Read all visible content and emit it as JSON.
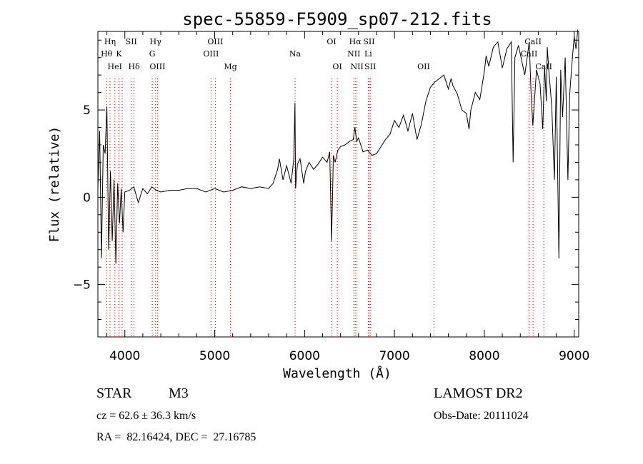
{
  "chart_data": {
    "type": "line",
    "title": "spec-55859-F5909_sp07-212.fits",
    "xlabel": "Wavelength (Å)",
    "ylabel": "Flux (relative)",
    "xlim": [
      3700,
      9050
    ],
    "ylim": [
      -8,
      9.5
    ],
    "xticks": [
      4000,
      5000,
      6000,
      7000,
      8000,
      9000
    ],
    "yticks": [
      -5,
      0,
      5
    ],
    "series": [
      {
        "color": "#000000",
        "x": [
          3700,
          3720,
          3740,
          3760,
          3780,
          3800,
          3820,
          3840,
          3860,
          3880,
          3900,
          3920,
          3940,
          3960,
          3980,
          4000,
          4050,
          4100,
          4150,
          4200,
          4250,
          4300,
          4350,
          4400,
          4500,
          4600,
          4700,
          4800,
          4900,
          5000,
          5100,
          5200,
          5300,
          5400,
          5500,
          5600,
          5650,
          5700,
          5720,
          5760,
          5800,
          5850,
          5880,
          5893,
          5900,
          5920,
          5950,
          5990,
          6010,
          6050,
          6100,
          6150,
          6200,
          6250,
          6280,
          6300,
          6320,
          6340,
          6370,
          6400,
          6450,
          6500,
          6540,
          6560,
          6580,
          6600,
          6650,
          6700,
          6750,
          6800,
          6850,
          6900,
          6950,
          7000,
          7050,
          7100,
          7150,
          7200,
          7250,
          7300,
          7350,
          7400,
          7450,
          7500,
          7550,
          7600,
          7630,
          7650,
          7700,
          7750,
          7800,
          7830,
          7850,
          7900,
          7950,
          8000,
          8020,
          8050,
          8100,
          8150,
          8200,
          8250,
          8300,
          8320,
          8340,
          8380,
          8450,
          8500,
          8520,
          8540,
          8580,
          8620,
          8650,
          8670,
          8690,
          8700,
          8720,
          8750,
          8780,
          8800,
          8830,
          8850,
          8870,
          8900,
          8930,
          8950,
          8980,
          9000,
          9020,
          9040
        ],
        "y": [
          0.5,
          3.8,
          -3.5,
          3.0,
          2.5,
          5.2,
          -3.0,
          1.5,
          -2.5,
          1.0,
          -3.8,
          0.8,
          -1.5,
          0.5,
          -2.0,
          0.3,
          0.4,
          0.6,
          -0.3,
          0.5,
          0.2,
          0.6,
          0.4,
          0.3,
          0.4,
          0.4,
          0.5,
          0.5,
          0.3,
          0.5,
          0.3,
          0.4,
          0.6,
          0.5,
          0.6,
          0.5,
          0.8,
          1.6,
          2.2,
          1.0,
          1.8,
          0.8,
          2.2,
          5.4,
          0.5,
          1.9,
          2.2,
          0.8,
          1.5,
          2.0,
          1.6,
          1.9,
          2.3,
          2.0,
          2.6,
          -2.5,
          2.4,
          2.0,
          2.7,
          2.9,
          3.0,
          3.2,
          3.3,
          4.0,
          3.2,
          3.4,
          2.6,
          2.7,
          2.4,
          2.5,
          2.9,
          3.3,
          3.6,
          4.4,
          4.0,
          4.7,
          3.8,
          4.8,
          3.3,
          4.2,
          5.5,
          6.3,
          6.6,
          6.8,
          7.0,
          6.2,
          6.8,
          6.4,
          5.9,
          5.0,
          4.8,
          3.9,
          5.0,
          6.0,
          5.6,
          7.2,
          8.1,
          7.5,
          8.6,
          8.9,
          7.4,
          8.5,
          8.9,
          2.0,
          8.0,
          8.7,
          7.0,
          8.9,
          6.0,
          4.1,
          7.3,
          6.5,
          3.9,
          7.5,
          5.5,
          8.6,
          7.1,
          5.2,
          1.0,
          6.9,
          -3.5,
          7.3,
          4.6,
          8.0,
          1.0,
          5.9,
          8.0,
          9.2,
          8.5,
          9.6
        ]
      }
    ],
    "line_markers": [
      {
        "label": "Hη",
        "x": 3835,
        "row": 0
      },
      {
        "label": "Hθ",
        "x": 3797,
        "row": 1
      },
      {
        "label": "K",
        "x": 3934,
        "row": 1
      },
      {
        "label": "HeI",
        "x": 3889,
        "row": 2
      },
      {
        "label": "SII",
        "x": 4072,
        "row": 0
      },
      {
        "label": "Hδ",
        "x": 4102,
        "row": 2
      },
      {
        "label": "Hγ",
        "x": 4341,
        "row": 0
      },
      {
        "label": "G",
        "x": 4305,
        "row": 1
      },
      {
        "label": "OIII",
        "x": 4363,
        "row": 2
      },
      {
        "label": "OIII",
        "x": 5007,
        "row": 0
      },
      {
        "label": "OIII",
        "x": 4959,
        "row": 1
      },
      {
        "label": "Mg",
        "x": 5175,
        "row": 2
      },
      {
        "label": "Na",
        "x": 5894,
        "row": 1
      },
      {
        "label": "OI",
        "x": 6300,
        "row": 0
      },
      {
        "label": "OI",
        "x": 6364,
        "row": 2
      },
      {
        "label": "Hα",
        "x": 6563,
        "row": 0
      },
      {
        "label": "NII",
        "x": 6548,
        "row": 1
      },
      {
        "label": "NII",
        "x": 6583,
        "row": 2
      },
      {
        "label": "SII",
        "x": 6717,
        "row": 0
      },
      {
        "label": "Li",
        "x": 6708,
        "row": 1
      },
      {
        "label": "SII",
        "x": 6731,
        "row": 2
      },
      {
        "label": "OII",
        "x": 7325,
        "row": 2
      },
      {
        "label": "CaII",
        "x": 8542,
        "row": 0
      },
      {
        "label": "CaII",
        "x": 8498,
        "row": 1
      },
      {
        "label": "CaII",
        "x": 8662,
        "row": 2
      }
    ],
    "marker_lines_x": [
      3797,
      3835,
      3889,
      3934,
      3970,
      4072,
      4102,
      4305,
      4341,
      4363,
      4959,
      5007,
      5175,
      5894,
      6300,
      6364,
      6548,
      6563,
      6583,
      6708,
      6717,
      6731,
      7440,
      8498,
      8542,
      8662
    ],
    "marker_color": "#cc0000",
    "grid": false
  },
  "info": {
    "obj_class": "STAR",
    "obj_subclass": "M3",
    "survey": "LAMOST DR2",
    "cz": "cz = 62.6 ± 36.3 km/s",
    "obs_date": "Obs-Date: 20111024",
    "radec": "RA =  82.16424, DEC =  27.16785"
  }
}
